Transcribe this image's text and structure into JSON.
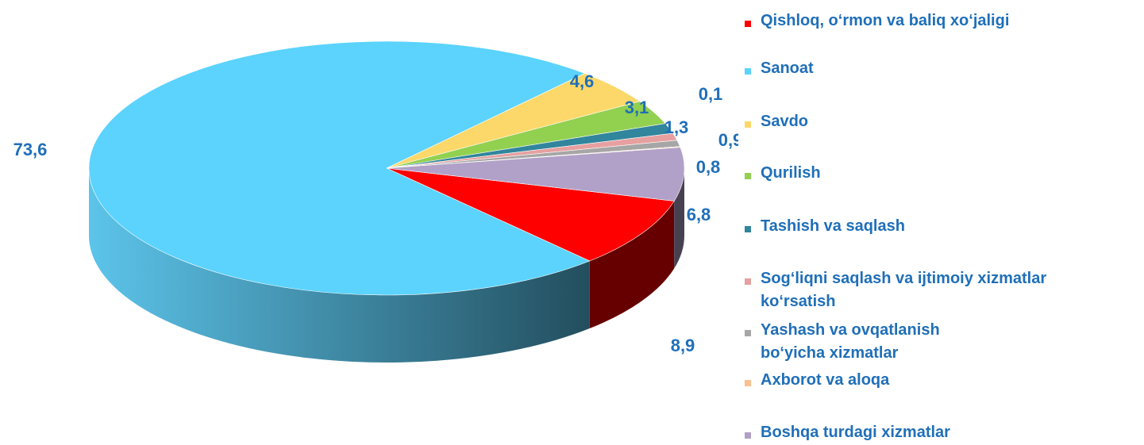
{
  "chart_data": {
    "type": "pie3d",
    "categories": [
      "Qishloq, o‘rmon va baliq xo‘jaligi",
      "Sanoat",
      "Savdo",
      "Qurilish",
      "Tashish va saqlash",
      "Sog‘liqni saqlash va ijtimoiy xizmatlar ko‘rsatish",
      "Yashash va ovqatlanish bo‘yicha xizmatlar",
      "Axborot va aloqa",
      "Boshqa turdagi xizmatlar"
    ],
    "values": [
      8.9,
      73.6,
      4.6,
      3.1,
      1.3,
      0.9,
      0.8,
      0.1,
      6.8
    ],
    "value_labels": [
      "8,9",
      "73,6",
      "4,6",
      "3,1",
      "1,3",
      "0,9",
      "0,8",
      "0,1",
      "6,8"
    ],
    "colors": [
      "#ff0000",
      "#5bd3fc",
      "#fcd86a",
      "#92d050",
      "#31859c",
      "#e6a0a0",
      "#a6a6a6",
      "#fac090",
      "#b1a0c7"
    ],
    "legend": "right"
  }
}
